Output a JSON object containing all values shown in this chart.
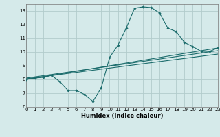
{
  "xlabel": "Humidex (Indice chaleur)",
  "xlim": [
    0,
    23
  ],
  "ylim": [
    6,
    13.5
  ],
  "yticks": [
    6,
    7,
    8,
    9,
    10,
    11,
    12,
    13
  ],
  "xticks": [
    0,
    1,
    2,
    3,
    4,
    5,
    6,
    7,
    8,
    9,
    10,
    11,
    12,
    13,
    14,
    15,
    16,
    17,
    18,
    19,
    20,
    21,
    22,
    23
  ],
  "background_color": "#d5eaea",
  "grid_color": "#b2cccc",
  "line_color": "#1a6b6b",
  "curve1_x": [
    0,
    1,
    2,
    3,
    4,
    5,
    6,
    7,
    8,
    9,
    10,
    11,
    12,
    13,
    14,
    15,
    16,
    17,
    18,
    19,
    20,
    21,
    22,
    23
  ],
  "curve1_y": [
    8.0,
    8.1,
    8.15,
    8.3,
    7.85,
    7.2,
    7.2,
    6.9,
    6.4,
    7.4,
    9.6,
    10.5,
    11.75,
    13.2,
    13.3,
    13.25,
    12.85,
    11.75,
    11.5,
    10.7,
    10.4,
    10.05,
    10.05,
    10.3
  ],
  "line1_x": [
    0,
    23
  ],
  "line1_y": [
    8.0,
    10.3
  ],
  "line2_x": [
    0,
    23
  ],
  "line2_y": [
    8.1,
    10.1
  ],
  "line3_x": [
    0,
    23
  ],
  "line3_y": [
    8.05,
    9.85
  ]
}
